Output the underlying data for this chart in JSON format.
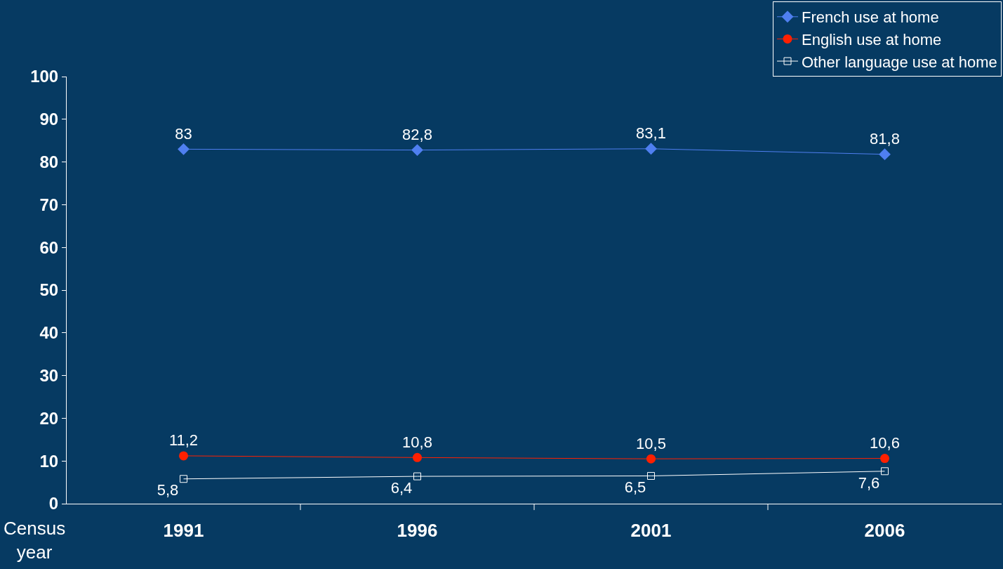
{
  "chart_data": {
    "type": "line",
    "xlabel": "Census year",
    "categories": [
      "1991",
      "1996",
      "2001",
      "2006"
    ],
    "series": [
      {
        "name": "French use at home",
        "color": "#4f7ff0",
        "marker": "diamond",
        "values": [
          83,
          82.8,
          83.1,
          81.8
        ],
        "value_labels": [
          "83",
          "82,8",
          "83,1",
          "81,8"
        ]
      },
      {
        "name": "English use at home",
        "color": "#ff2000",
        "marker": "circle",
        "values": [
          11.2,
          10.8,
          10.5,
          10.6
        ],
        "value_labels": [
          "11,2",
          "10,8",
          "10,5",
          "10,6"
        ]
      },
      {
        "name": "Other language use at home",
        "color": "#ffffff",
        "marker": "square",
        "values": [
          5.8,
          6.4,
          6.5,
          7.6
        ],
        "value_labels": [
          "5,8",
          "6,4",
          "6,5",
          "7,6"
        ]
      }
    ],
    "ylim": [
      0,
      100
    ],
    "yticks": [
      0,
      10,
      20,
      30,
      40,
      50,
      60,
      70,
      80,
      90,
      100
    ],
    "grid": false,
    "legend": "top right",
    "line_style": "solid"
  }
}
